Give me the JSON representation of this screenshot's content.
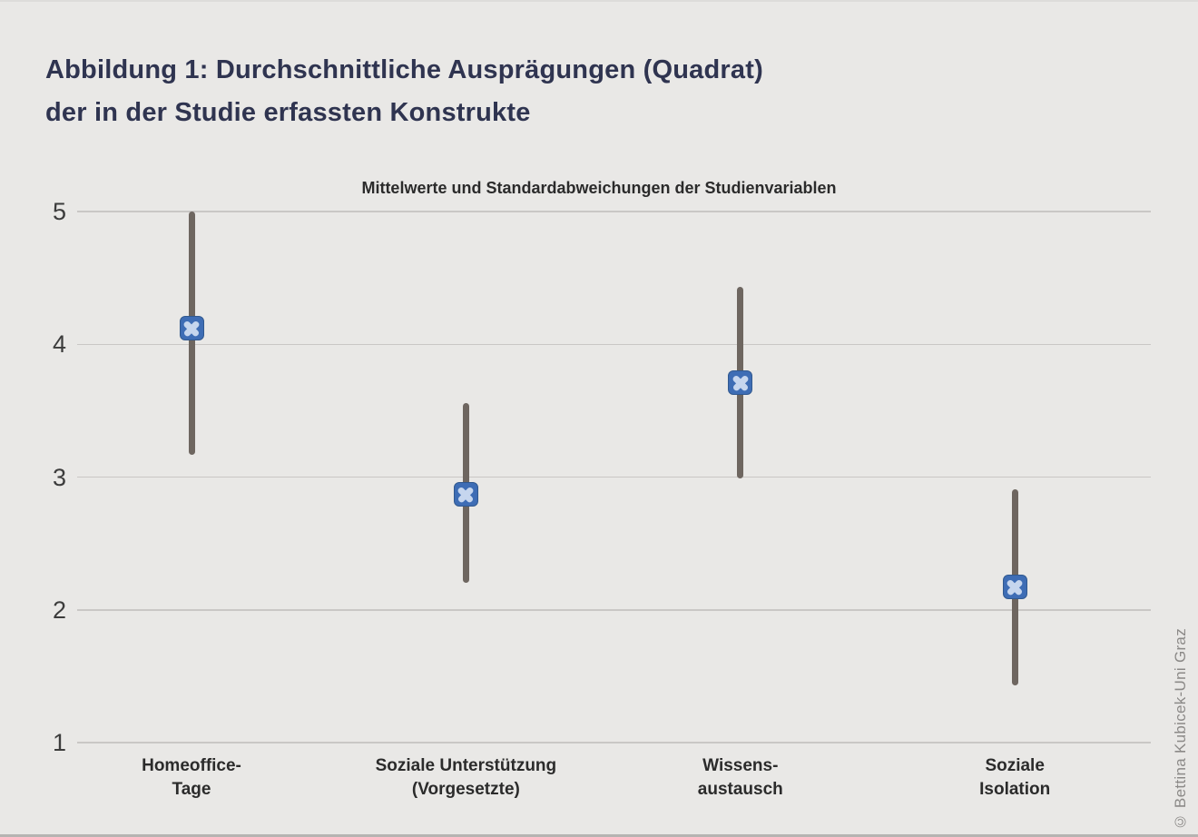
{
  "figure": {
    "title_line1": "Abbildung 1: Durchschnittliche Ausprägungen (Quadrat)",
    "title_line2": "der in der Studie erfassten Konstrukte",
    "credit": "© Bettina Kubicek-Uni Graz"
  },
  "chart_data": {
    "type": "scatter",
    "subtype": "mean-with-sd-errorbars",
    "title": "Mittelwerte und Standardabweichungen der Studienvariablen",
    "marker": "blue-rounded-square-with-x",
    "ylim": [
      1,
      5
    ],
    "yticks": [
      5,
      4,
      3,
      2,
      1
    ],
    "grid": true,
    "legend_position": "none",
    "xlabel": "",
    "ylabel": "",
    "points": [
      {
        "category": "Homeoffice-Tage",
        "label_lines": [
          "Homeoffice-",
          "Tage"
        ],
        "mean": 4.12,
        "lower": 3.17,
        "upper": 5.0
      },
      {
        "category": "Soziale Unterstützung (Vorgesetzte)",
        "label_lines": [
          "Soziale Unterstützung",
          "(Vorgesetzte)"
        ],
        "mean": 2.87,
        "lower": 2.2,
        "upper": 3.56
      },
      {
        "category": "Wissensaustausch",
        "label_lines": [
          "Wissens-",
          "austausch"
        ],
        "mean": 3.71,
        "lower": 2.99,
        "upper": 4.43
      },
      {
        "category": "Soziale Isolation",
        "label_lines": [
          "Soziale",
          "Isolation"
        ],
        "mean": 2.17,
        "lower": 1.43,
        "upper": 2.91
      }
    ]
  },
  "colors": {
    "background": "#e9e8e6",
    "figure_title": "#2f3450",
    "subtitle_text": "#2b2b2b",
    "gridline": "#c9c7c5",
    "error_bar": "#6e6660",
    "marker_fill": "#3e6db5",
    "marker_border": "#31598f",
    "marker_x": "#c6d6ee",
    "tick_text": "#3c3c3c",
    "credit_text": "#8c8a88"
  }
}
